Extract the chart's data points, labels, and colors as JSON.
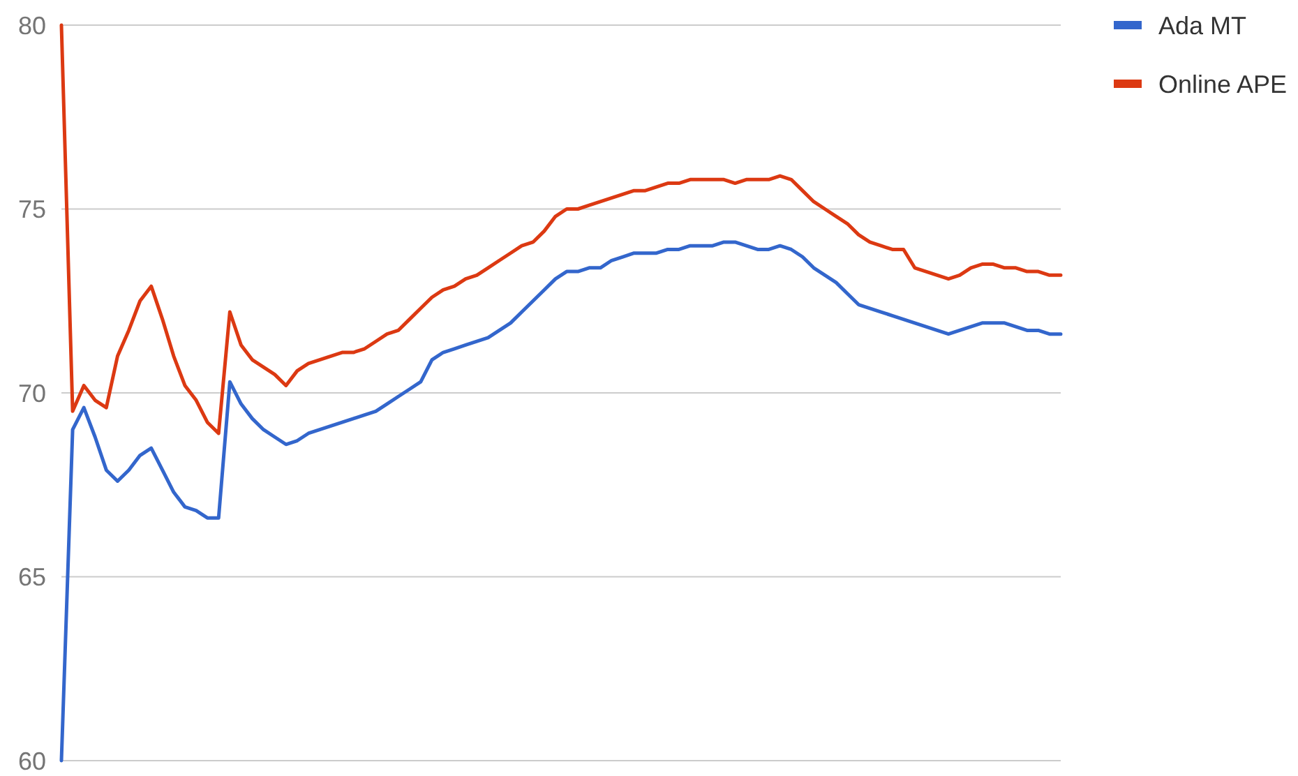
{
  "chart_data": {
    "type": "line",
    "categories": [
      null,
      null,
      null,
      null,
      null,
      null,
      null,
      null,
      null,
      null,
      null,
      null,
      null,
      null,
      null,
      null,
      null,
      null,
      null,
      null,
      null,
      null,
      null,
      null,
      null,
      null,
      null,
      null,
      null,
      null,
      null,
      null,
      null,
      null,
      null,
      null,
      null,
      null,
      null,
      null,
      null,
      null,
      null,
      null,
      null,
      null,
      null,
      null,
      null,
      null,
      null,
      null,
      null,
      null,
      null,
      null,
      null,
      null,
      null,
      null,
      null,
      null,
      null,
      null,
      null,
      null,
      null,
      null,
      null,
      null,
      null,
      null,
      null,
      null,
      null,
      null,
      null,
      null,
      null,
      null,
      null,
      null,
      null,
      null,
      null,
      null,
      null,
      null,
      null,
      null
    ],
    "series": [
      {
        "name": "Ada MT",
        "color": "#3366cc",
        "values": [
          60,
          69,
          69.6,
          68.8,
          67.9,
          67.6,
          67.9,
          68.3,
          68.5,
          67.9,
          67.3,
          66.9,
          66.8,
          66.6,
          66.6,
          70.3,
          69.7,
          69.3,
          69,
          68.8,
          68.6,
          68.7,
          68.9,
          69,
          69.1,
          69.2,
          69.3,
          69.4,
          69.5,
          69.7,
          69.9,
          70.1,
          70.3,
          70.9,
          71.1,
          71.2,
          71.3,
          71.4,
          71.5,
          71.7,
          71.9,
          72.2,
          72.5,
          72.8,
          73.1,
          73.3,
          73.3,
          73.4,
          73.4,
          73.6,
          73.7,
          73.8,
          73.8,
          73.8,
          73.9,
          73.9,
          74,
          74,
          74,
          74.1,
          74.1,
          74,
          73.9,
          73.9,
          74,
          73.9,
          73.7,
          73.4,
          73.2,
          73,
          72.7,
          72.4,
          72.3,
          72.2,
          72.1,
          72,
          71.9,
          71.8,
          71.7,
          71.6,
          71.7,
          71.8,
          71.9,
          71.9,
          71.9,
          71.8,
          71.7,
          71.7,
          71.6,
          71.6
        ]
      },
      {
        "name": "Online APE",
        "color": "#dc3912",
        "values": [
          80,
          69.5,
          70.2,
          69.8,
          69.6,
          71,
          71.7,
          72.5,
          72.9,
          72,
          71,
          70.2,
          69.8,
          69.2,
          68.9,
          72.2,
          71.3,
          70.9,
          70.7,
          70.5,
          70.2,
          70.6,
          70.8,
          70.9,
          71,
          71.1,
          71.1,
          71.2,
          71.4,
          71.6,
          71.7,
          72,
          72.3,
          72.6,
          72.8,
          72.9,
          73.1,
          73.2,
          73.4,
          73.6,
          73.8,
          74,
          74.1,
          74.4,
          74.8,
          75,
          75,
          75.1,
          75.2,
          75.3,
          75.4,
          75.5,
          75.5,
          75.6,
          75.7,
          75.7,
          75.8,
          75.8,
          75.8,
          75.8,
          75.7,
          75.8,
          75.8,
          75.8,
          75.9,
          75.8,
          75.5,
          75.2,
          75,
          74.8,
          74.6,
          74.3,
          74.1,
          74,
          73.9,
          73.9,
          73.4,
          73.3,
          73.2,
          73.1,
          73.2,
          73.4,
          73.5,
          73.5,
          73.4,
          73.4,
          73.3,
          73.3,
          73.2,
          73.2
        ]
      }
    ],
    "ylim": [
      60,
      80
    ],
    "yticks": [
      60,
      65,
      70,
      75,
      80
    ],
    "grid": true,
    "legend": "top right",
    "tick_labels": "y",
    "line_style": "solid",
    "marker": "none"
  }
}
